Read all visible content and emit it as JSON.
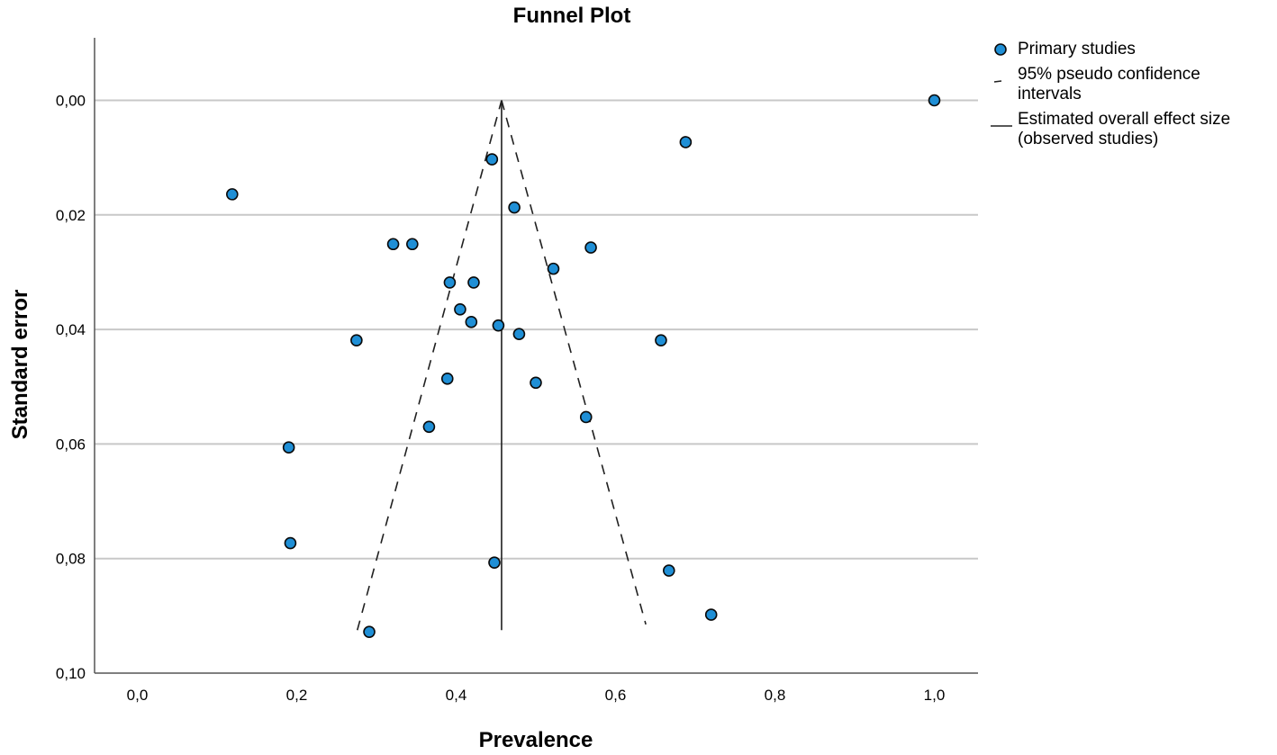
{
  "chart_data": {
    "type": "scatter",
    "title": "Funnel Plot",
    "xlabel": "Prevalence",
    "ylabel": "Standard error",
    "xlim": [
      -0.05,
      1.05
    ],
    "ylim": [
      0.1,
      -0.011
    ],
    "y_axis_inverted": true,
    "x_ticks": [
      "0,0",
      "0,2",
      "0,4",
      "0,6",
      "0,8",
      "1,0"
    ],
    "x_tick_values": [
      0.0,
      0.2,
      0.4,
      0.6,
      0.8,
      1.0
    ],
    "y_ticks": [
      "0,00",
      "0,02",
      "0,04",
      "0,06",
      "0,08",
      "0,10"
    ],
    "y_tick_values": [
      0.0,
      0.02,
      0.04,
      0.06,
      0.08,
      0.1
    ],
    "grid": "horizontal",
    "legend_position": "right",
    "colors": {
      "points": "#1f8fd6",
      "point_edge": "#0a0a0a",
      "grid": "#c8c8c8",
      "lines": "#202020"
    },
    "series": [
      {
        "name": "Primary studies",
        "points": [
          {
            "x": 1.0,
            "y": 0.0
          },
          {
            "x": 0.688,
            "y": 0.0073
          },
          {
            "x": 0.445,
            "y": 0.0103
          },
          {
            "x": 0.119,
            "y": 0.0164
          },
          {
            "x": 0.473,
            "y": 0.0187
          },
          {
            "x": 0.321,
            "y": 0.0251
          },
          {
            "x": 0.345,
            "y": 0.0251
          },
          {
            "x": 0.569,
            "y": 0.0257
          },
          {
            "x": 0.522,
            "y": 0.0294
          },
          {
            "x": 0.392,
            "y": 0.0318
          },
          {
            "x": 0.422,
            "y": 0.0318
          },
          {
            "x": 0.405,
            "y": 0.0365
          },
          {
            "x": 0.419,
            "y": 0.0387
          },
          {
            "x": 0.453,
            "y": 0.0393
          },
          {
            "x": 0.479,
            "y": 0.0408
          },
          {
            "x": 0.275,
            "y": 0.0419
          },
          {
            "x": 0.657,
            "y": 0.0419
          },
          {
            "x": 0.389,
            "y": 0.0486
          },
          {
            "x": 0.5,
            "y": 0.0493
          },
          {
            "x": 0.563,
            "y": 0.0553
          },
          {
            "x": 0.366,
            "y": 0.057
          },
          {
            "x": 0.19,
            "y": 0.0606
          },
          {
            "x": 0.192,
            "y": 0.0773
          },
          {
            "x": 0.448,
            "y": 0.0807
          },
          {
            "x": 0.667,
            "y": 0.0821
          },
          {
            "x": 0.72,
            "y": 0.0898
          },
          {
            "x": 0.291,
            "y": 0.0928
          }
        ]
      },
      {
        "name": "95% pseudo confidence intervals",
        "style": "dashed",
        "paths": [
          [
            {
              "x": 0.276,
              "y": 0.0925
            },
            {
              "x": 0.457,
              "y": 0.0
            }
          ],
          [
            {
              "x": 0.457,
              "y": 0.0
            },
            {
              "x": 0.638,
              "y": 0.0915
            }
          ]
        ]
      },
      {
        "name": "Estimated overall effect size (observed studies)",
        "style": "solid",
        "x": 0.457,
        "y_range": [
          0.0,
          0.0925
        ]
      }
    ],
    "legend": [
      {
        "symbol": "circle",
        "label": "Primary studies"
      },
      {
        "symbol": "dash",
        "label": "95% pseudo confidence\nintervals"
      },
      {
        "symbol": "line",
        "label": "Estimated overall effect size\n(observed studies)"
      }
    ]
  }
}
